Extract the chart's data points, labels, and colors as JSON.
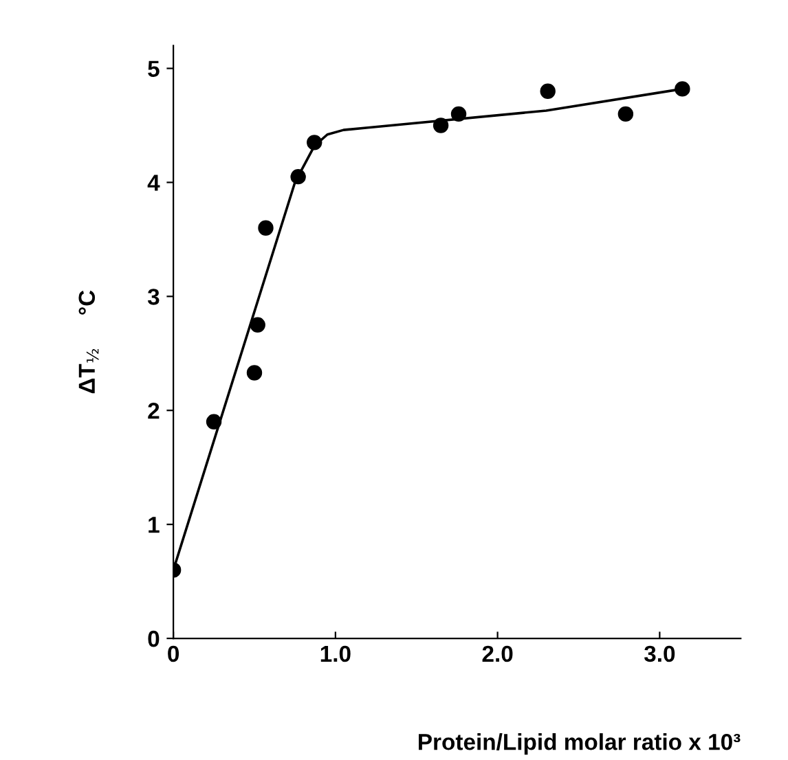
{
  "chart_data": {
    "type": "scatter",
    "xlabel": "Protein/Lipid molar ratio x 10³",
    "ylabel": "ΔT$_{½}$     °C",
    "xlim": [
      0,
      3.5
    ],
    "ylim": [
      0,
      5.2
    ],
    "xticks": [
      {
        "value": 0,
        "label": "0"
      },
      {
        "value": 1,
        "label": "1.0"
      },
      {
        "value": 2,
        "label": "2.0"
      },
      {
        "value": 3,
        "label": "3.0"
      }
    ],
    "yticks": [
      0,
      1,
      2,
      3,
      4,
      5
    ],
    "grid": false,
    "series": [
      {
        "marker": "circle",
        "color": "#000000",
        "x": [
          0,
          0.25,
          0.5,
          0.52,
          0.57,
          0.77,
          0.87,
          1.65,
          1.76,
          2.31,
          2.79,
          3.14
        ],
        "values": [
          0.6,
          1.9,
          2.33,
          2.75,
          3.6,
          4.05,
          4.35,
          4.5,
          4.6,
          4.8,
          4.6,
          4.82
        ]
      },
      {
        "type": "line",
        "marker": "none",
        "color": "#000000",
        "line_style": "solid",
        "x": [
          0,
          0.75,
          0.87,
          0.95,
          1.05,
          1.2,
          2.3,
          3.14
        ],
        "values": [
          0.6,
          4.0,
          4.32,
          4.42,
          4.46,
          4.48,
          4.63,
          4.82
        ]
      }
    ]
  }
}
